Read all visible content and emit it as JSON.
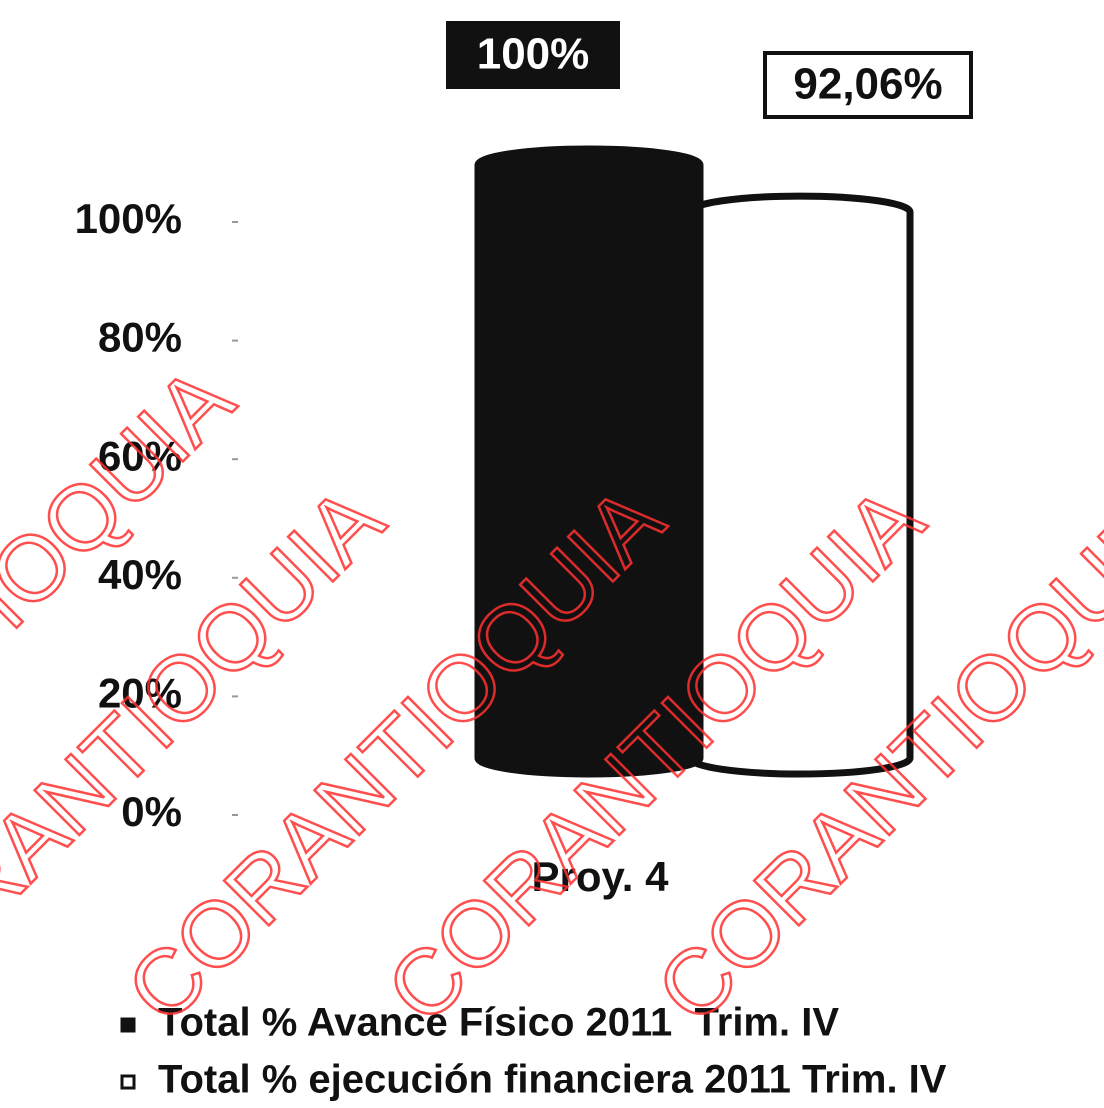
{
  "chart_data": {
    "type": "cylinder_bar",
    "categories": [
      "Proy. 4"
    ],
    "series": [
      {
        "name": "Total % Avance Físico 2011  Trim. IV",
        "color": "#111111",
        "values": [
          100
        ],
        "value_labels": [
          "100%"
        ]
      },
      {
        "name": "Total % ejecución financiera 2011 Trim. IV",
        "color": "#ffffff",
        "values": [
          92.06
        ],
        "value_labels": [
          "92,06%"
        ]
      }
    ],
    "ylim": [
      0,
      100
    ],
    "yticks": [
      {
        "value": 0,
        "label": "0%"
      },
      {
        "value": 20,
        "label": "20%"
      },
      {
        "value": 40,
        "label": "40%"
      },
      {
        "value": 60,
        "label": "60%"
      },
      {
        "value": 80,
        "label": "80%"
      },
      {
        "value": 100,
        "label": "100%"
      }
    ],
    "grid": false,
    "legend": "bottom",
    "watermark": "CORANTIOQUIA"
  }
}
